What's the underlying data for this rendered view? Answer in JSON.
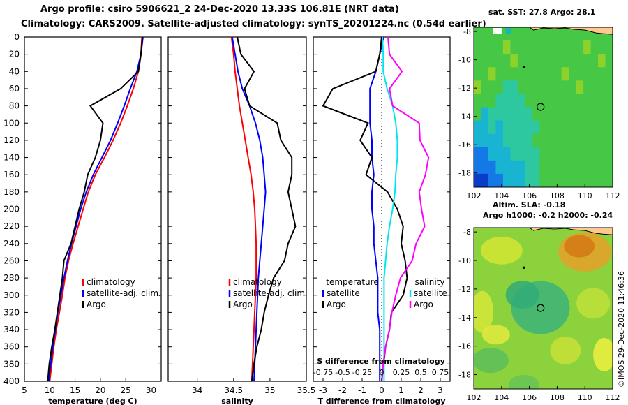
{
  "header": {
    "line1": "Argo profile: csiro 5906621_2 24-Dec-2020 13.33S 106.81E (NRT data)",
    "line2": "Climatology: CARS2009. Satellite-adjusted climatology: synTS_20201224.nc (0.54d earlier)"
  },
  "map_top": {
    "title": "sat. SST: 27.8 Argo: 28.1"
  },
  "map_bottom": {
    "title_line1": "Altim. SLA: -0.18",
    "title_line2": "Argo h1000: -0.2 h2000: -0.24"
  },
  "credit": "©IMOS 29-Dec-2020 11:46:36",
  "colors": {
    "climatology": "#ff0000",
    "satellite": "#0000ff",
    "argo": "#000000",
    "sat_salt": "#00e5ee",
    "argo_salt": "#ff00ff"
  },
  "chart_data": [
    {
      "type": "line",
      "title": "",
      "xlabel": "temperature (deg C)",
      "ylabel": "",
      "xlim": [
        5,
        32
      ],
      "ylim": [
        400,
        0
      ],
      "xticks": [
        "5",
        "10",
        "15",
        "20",
        "25",
        "30"
      ],
      "yticks": [
        "0",
        "20",
        "40",
        "60",
        "80",
        "100",
        "120",
        "140",
        "160",
        "180",
        "200",
        "220",
        "240",
        "260",
        "280",
        "300",
        "320",
        "340",
        "360",
        "380",
        "400"
      ],
      "legend": [
        "climatology",
        "satellite-adj. clim.",
        "Argo"
      ],
      "series": [
        {
          "name": "climatology",
          "x": [
            28.2,
            28.0,
            27.5,
            26.5,
            25.3,
            24.0,
            22.5,
            20.8,
            19.0,
            17.6,
            16.6,
            15.6,
            14.6,
            13.7,
            13.0,
            12.5,
            11.9,
            11.3,
            10.8,
            10.4,
            10.0
          ],
          "y": [
            0,
            20,
            40,
            60,
            80,
            100,
            120,
            140,
            160,
            180,
            200,
            220,
            240,
            260,
            280,
            300,
            320,
            340,
            360,
            380,
            400
          ]
        },
        {
          "name": "satellite-adj. clim.",
          "x": [
            28.4,
            28.0,
            27.2,
            25.9,
            24.7,
            23.4,
            22.0,
            20.3,
            18.6,
            17.2,
            16.1,
            15.2,
            14.3,
            13.5,
            12.8,
            12.2,
            11.6,
            11.1,
            10.6,
            10.2,
            9.8
          ],
          "y": [
            0,
            20,
            40,
            60,
            80,
            100,
            120,
            140,
            160,
            180,
            200,
            220,
            240,
            260,
            280,
            300,
            320,
            340,
            360,
            380,
            400
          ]
        },
        {
          "name": "Argo",
          "x": [
            28.3,
            28.0,
            27.5,
            24.0,
            18.0,
            20.5,
            20.0,
            19.0,
            17.5,
            16.8,
            15.8,
            15.0,
            14.2,
            12.8,
            12.5,
            12.0,
            11.5,
            11.0,
            10.4,
            9.9,
            9.6
          ],
          "y": [
            0,
            20,
            40,
            60,
            80,
            100,
            120,
            140,
            160,
            180,
            200,
            220,
            240,
            260,
            280,
            300,
            320,
            340,
            360,
            380,
            400
          ]
        }
      ]
    },
    {
      "type": "line",
      "title": "",
      "xlabel": "salinity",
      "ylabel": "",
      "xlim": [
        33.6,
        35.5
      ],
      "ylim": [
        400,
        0
      ],
      "xticks": [
        "34",
        "34.5",
        "35",
        "35.5"
      ],
      "legend": [
        "climatology",
        "satellite-adj. clim.",
        "Argo"
      ],
      "series": [
        {
          "name": "climatology",
          "x": [
            34.47,
            34.5,
            34.52,
            34.55,
            34.58,
            34.62,
            34.66,
            34.7,
            34.74,
            34.77,
            34.79,
            34.8,
            34.81,
            34.81,
            34.81,
            34.8,
            34.79,
            34.78,
            34.77,
            34.76,
            34.75
          ],
          "y": [
            0,
            20,
            40,
            60,
            80,
            100,
            120,
            140,
            160,
            180,
            200,
            220,
            240,
            260,
            280,
            300,
            320,
            340,
            360,
            380,
            400
          ]
        },
        {
          "name": "satellite-adj. clim.",
          "x": [
            34.48,
            34.52,
            34.56,
            34.62,
            34.72,
            34.8,
            34.86,
            34.9,
            34.92,
            34.94,
            34.92,
            34.9,
            34.88,
            34.86,
            34.84,
            34.83,
            34.82,
            34.81,
            34.8,
            34.79,
            34.78
          ],
          "y": [
            0,
            20,
            40,
            60,
            80,
            100,
            120,
            140,
            160,
            180,
            200,
            220,
            240,
            260,
            280,
            300,
            320,
            340,
            360,
            380,
            400
          ]
        },
        {
          "name": "Argo",
          "x": [
            34.55,
            34.6,
            34.78,
            34.65,
            34.72,
            35.1,
            35.15,
            35.3,
            35.3,
            35.25,
            35.3,
            35.35,
            35.25,
            35.2,
            35.05,
            34.98,
            34.92,
            34.88,
            34.82,
            34.78,
            34.75
          ],
          "y": [
            0,
            20,
            40,
            60,
            80,
            100,
            120,
            140,
            160,
            180,
            200,
            220,
            240,
            260,
            280,
            300,
            320,
            340,
            360,
            380,
            400
          ]
        }
      ]
    },
    {
      "type": "line",
      "title": "",
      "xlabel": "T difference from climatology",
      "ylabel": "",
      "xlim": [
        -3.5,
        3.5
      ],
      "ylim": [
        400,
        0
      ],
      "xticks": [
        "-3",
        "-2",
        "-1",
        "0",
        "1",
        "2",
        "3"
      ],
      "secondary_axis_label": "S difference from climatology",
      "secondary_xticks": [
        "-0.75",
        "-0.5",
        "-0.25",
        "0",
        "0.25",
        "0.5",
        "0.75"
      ],
      "legend_left": {
        "title": "temperature",
        "items": [
          "satellite",
          "Argo"
        ]
      },
      "legend_right": {
        "title": "salinity",
        "items": [
          "satellite",
          "Argo"
        ]
      },
      "series": [
        {
          "name": "temperature satellite",
          "units": "degC",
          "x": [
            0.1,
            -0.1,
            -0.3,
            -0.6,
            -0.6,
            -0.6,
            -0.5,
            -0.5,
            -0.4,
            -0.5,
            -0.5,
            -0.4,
            -0.4,
            -0.3,
            -0.2,
            -0.2,
            -0.2,
            -0.1,
            -0.1,
            -0.1,
            -0.1
          ],
          "y": [
            0,
            20,
            40,
            60,
            80,
            100,
            120,
            140,
            160,
            180,
            200,
            220,
            240,
            260,
            280,
            300,
            320,
            340,
            360,
            380,
            400
          ]
        },
        {
          "name": "temperature Argo",
          "units": "degC",
          "x": [
            0.0,
            -0.1,
            -0.3,
            -2.5,
            -3.0,
            -0.7,
            -1.1,
            -0.5,
            -0.8,
            0.3,
            0.8,
            1.1,
            1.0,
            1.2,
            1.3,
            1.1,
            0.5,
            0.4,
            0.2,
            0.1,
            0.0
          ],
          "y": [
            0,
            20,
            40,
            60,
            80,
            100,
            120,
            140,
            160,
            180,
            200,
            220,
            240,
            260,
            280,
            300,
            320,
            340,
            360,
            380,
            400
          ]
        },
        {
          "name": "salinity satellite",
          "units": "psu",
          "x": [
            0.01,
            0.02,
            0.02,
            0.07,
            0.14,
            0.18,
            0.2,
            0.2,
            0.18,
            0.17,
            0.14,
            0.1,
            0.07,
            0.05,
            0.03,
            0.03,
            0.03,
            0.03,
            0.03,
            0.03,
            0.03
          ],
          "y": [
            0,
            20,
            40,
            60,
            80,
            100,
            120,
            140,
            160,
            180,
            200,
            220,
            240,
            260,
            280,
            300,
            320,
            340,
            360,
            380,
            400
          ]
        },
        {
          "name": "salinity Argo",
          "units": "psu",
          "x": [
            0.08,
            0.1,
            0.26,
            0.1,
            0.14,
            0.48,
            0.49,
            0.6,
            0.56,
            0.48,
            0.51,
            0.55,
            0.44,
            0.39,
            0.24,
            0.18,
            0.13,
            0.1,
            0.05,
            0.02,
            0.0
          ],
          "y": [
            0,
            20,
            40,
            60,
            80,
            100,
            120,
            140,
            160,
            180,
            200,
            220,
            240,
            260,
            280,
            300,
            320,
            340,
            360,
            380,
            400
          ]
        }
      ]
    },
    {
      "type": "heatmap",
      "title": "sat. SST: 27.8 Argo: 28.1",
      "xlim": [
        102,
        112
      ],
      "ylim": [
        -19,
        -7.7
      ],
      "xticks": [
        "102",
        "104",
        "106",
        "108",
        "110",
        "112"
      ],
      "yticks": [
        "-8",
        "-10",
        "-12",
        "-14",
        "-16",
        "-18"
      ],
      "argo_position": [
        106.81,
        -13.33
      ],
      "rows_north_to_south": [
        "ggggggggggggggggggg",
        "ggggGggggggggggGggg",
        "gggggGgggggggggggGg",
        "ggGgggggggggGgggggg",
        "GgggTTggggggggGgggg",
        "gggTTTTgggggggggggg",
        "gcTTTTTTggggggggggg",
        "ccTcTTTTTgggggggggg",
        "ccccTTTTggggggggggg",
        "bbcccTTTTgggggggggg",
        "bbbccccTTgggggggggg",
        "BBbbcccTTgggggggggg"
      ]
    },
    {
      "type": "heatmap",
      "title": "Altim. SLA: -0.18",
      "xlim": [
        102,
        112
      ],
      "ylim": [
        -19,
        -7.7
      ],
      "xticks": [
        "102",
        "104",
        "106",
        "108",
        "110",
        "112"
      ],
      "yticks": [
        "-8",
        "-10",
        "-12",
        "-14",
        "-16",
        "-18"
      ],
      "argo_position": [
        106.81,
        -13.33
      ]
    }
  ]
}
